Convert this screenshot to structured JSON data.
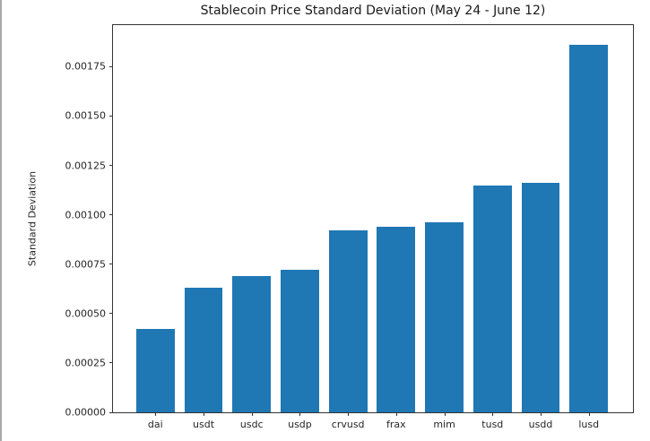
{
  "title": "Stablecoin Price Standard Deviation (May 24 - June 12)",
  "chart_data": {
    "type": "bar",
    "title": "Stablecoin Price Standard Deviation (May 24 - June 12)",
    "xlabel": "",
    "ylabel": "Standard Deviation",
    "categories": [
      "dai",
      "usdt",
      "usdc",
      "usdp",
      "crvusd",
      "frax",
      "mim",
      "tusd",
      "usdd",
      "lusd"
    ],
    "values": [
      0.00042,
      0.00063,
      0.00069,
      0.00072,
      0.00092,
      0.00094,
      0.00096,
      0.00115,
      0.00116,
      0.00186
    ],
    "ylim": [
      0,
      0.00196
    ],
    "yticks": [
      0.0,
      0.00025,
      0.0005,
      0.00075,
      0.001,
      0.00125,
      0.0015,
      0.00175
    ],
    "ytick_labels": [
      "0.00000",
      "0.00025",
      "0.00050",
      "0.00075",
      "0.00100",
      "0.00125",
      "0.00150",
      "0.00175"
    ],
    "bar_color": "#1f77b4",
    "axis_color": "#333333",
    "grid": false,
    "legend_position": "none"
  }
}
